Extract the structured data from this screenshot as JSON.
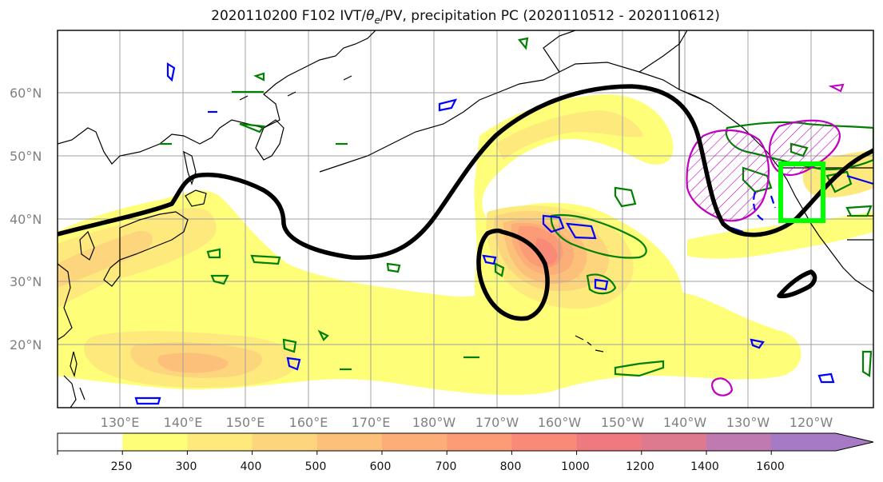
{
  "title": {
    "prefix": "2020110200 F102 IVT/",
    "theta": "θ",
    "theta_sub": "e",
    "suffix": "/PV, precipitation PC (2020110512 - 2020110612)"
  },
  "map": {
    "lat_labels": [
      "60°N",
      "50°N",
      "40°N",
      "30°N",
      "20°N"
    ],
    "lon_labels": [
      "130°E",
      "140°E",
      "150°E",
      "160°E",
      "170°E",
      "180°W",
      "170°W",
      "160°W",
      "150°W",
      "140°W",
      "130°W",
      "120°W"
    ]
  },
  "colorbar": {
    "ticks": [
      "250",
      "300",
      "400",
      "500",
      "600",
      "700",
      "800",
      "1000",
      "1200",
      "1400",
      "1600"
    ],
    "colors": [
      "#ffffff",
      "#fefe78",
      "#fde97c",
      "#fcd57c",
      "#fcc07a",
      "#fcae78",
      "#fc9c77",
      "#fa8a78",
      "#ee7a7f",
      "#de7a90",
      "#c07ab2",
      "#a77ac6"
    ]
  },
  "colors": {
    "theta_e_contour": "#000000",
    "pv_green": "#008000",
    "pv_blue": "#0000ff",
    "precip_magenta": "#c000c0",
    "highlight_box": "#00ff00"
  }
}
